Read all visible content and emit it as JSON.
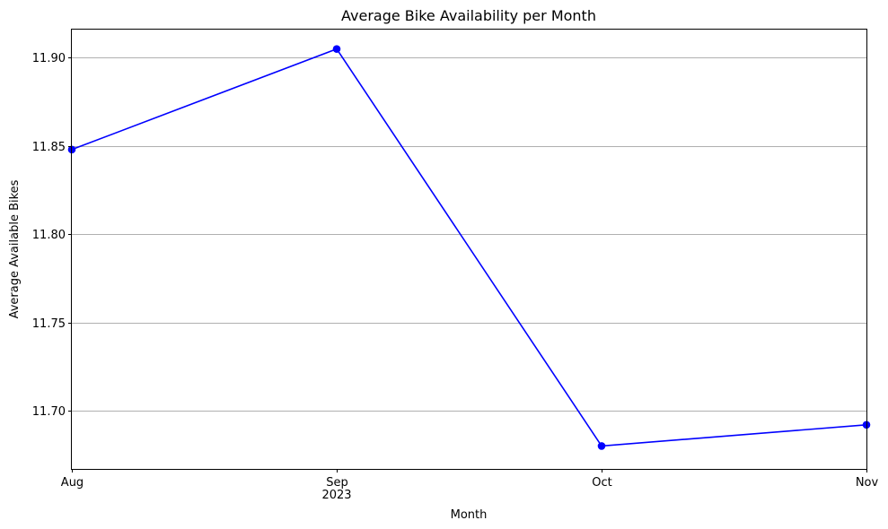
{
  "chart_data": {
    "type": "line",
    "title": "Average Bike Availability per Month",
    "xlabel": "Month",
    "ylabel": "Average Available Bikes",
    "categories": [
      "Aug",
      "Sep",
      "Oct",
      "Nov"
    ],
    "year_label": "2023",
    "x": [
      "2023-08",
      "2023-09",
      "2023-10",
      "2023-11"
    ],
    "series": [
      {
        "values": [
          11.848,
          11.905,
          11.68,
          11.692
        ],
        "color": "#0000ff",
        "marker": "circle"
      }
    ],
    "ylim": [
      11.667,
      11.916
    ],
    "yticks": [
      11.7,
      11.75,
      11.8,
      11.85,
      11.9
    ],
    "ytick_labels": [
      "11.70",
      "11.75",
      "11.80",
      "11.85",
      "11.90"
    ],
    "grid": "y-major",
    "grid_color": "#b0b0b0"
  }
}
